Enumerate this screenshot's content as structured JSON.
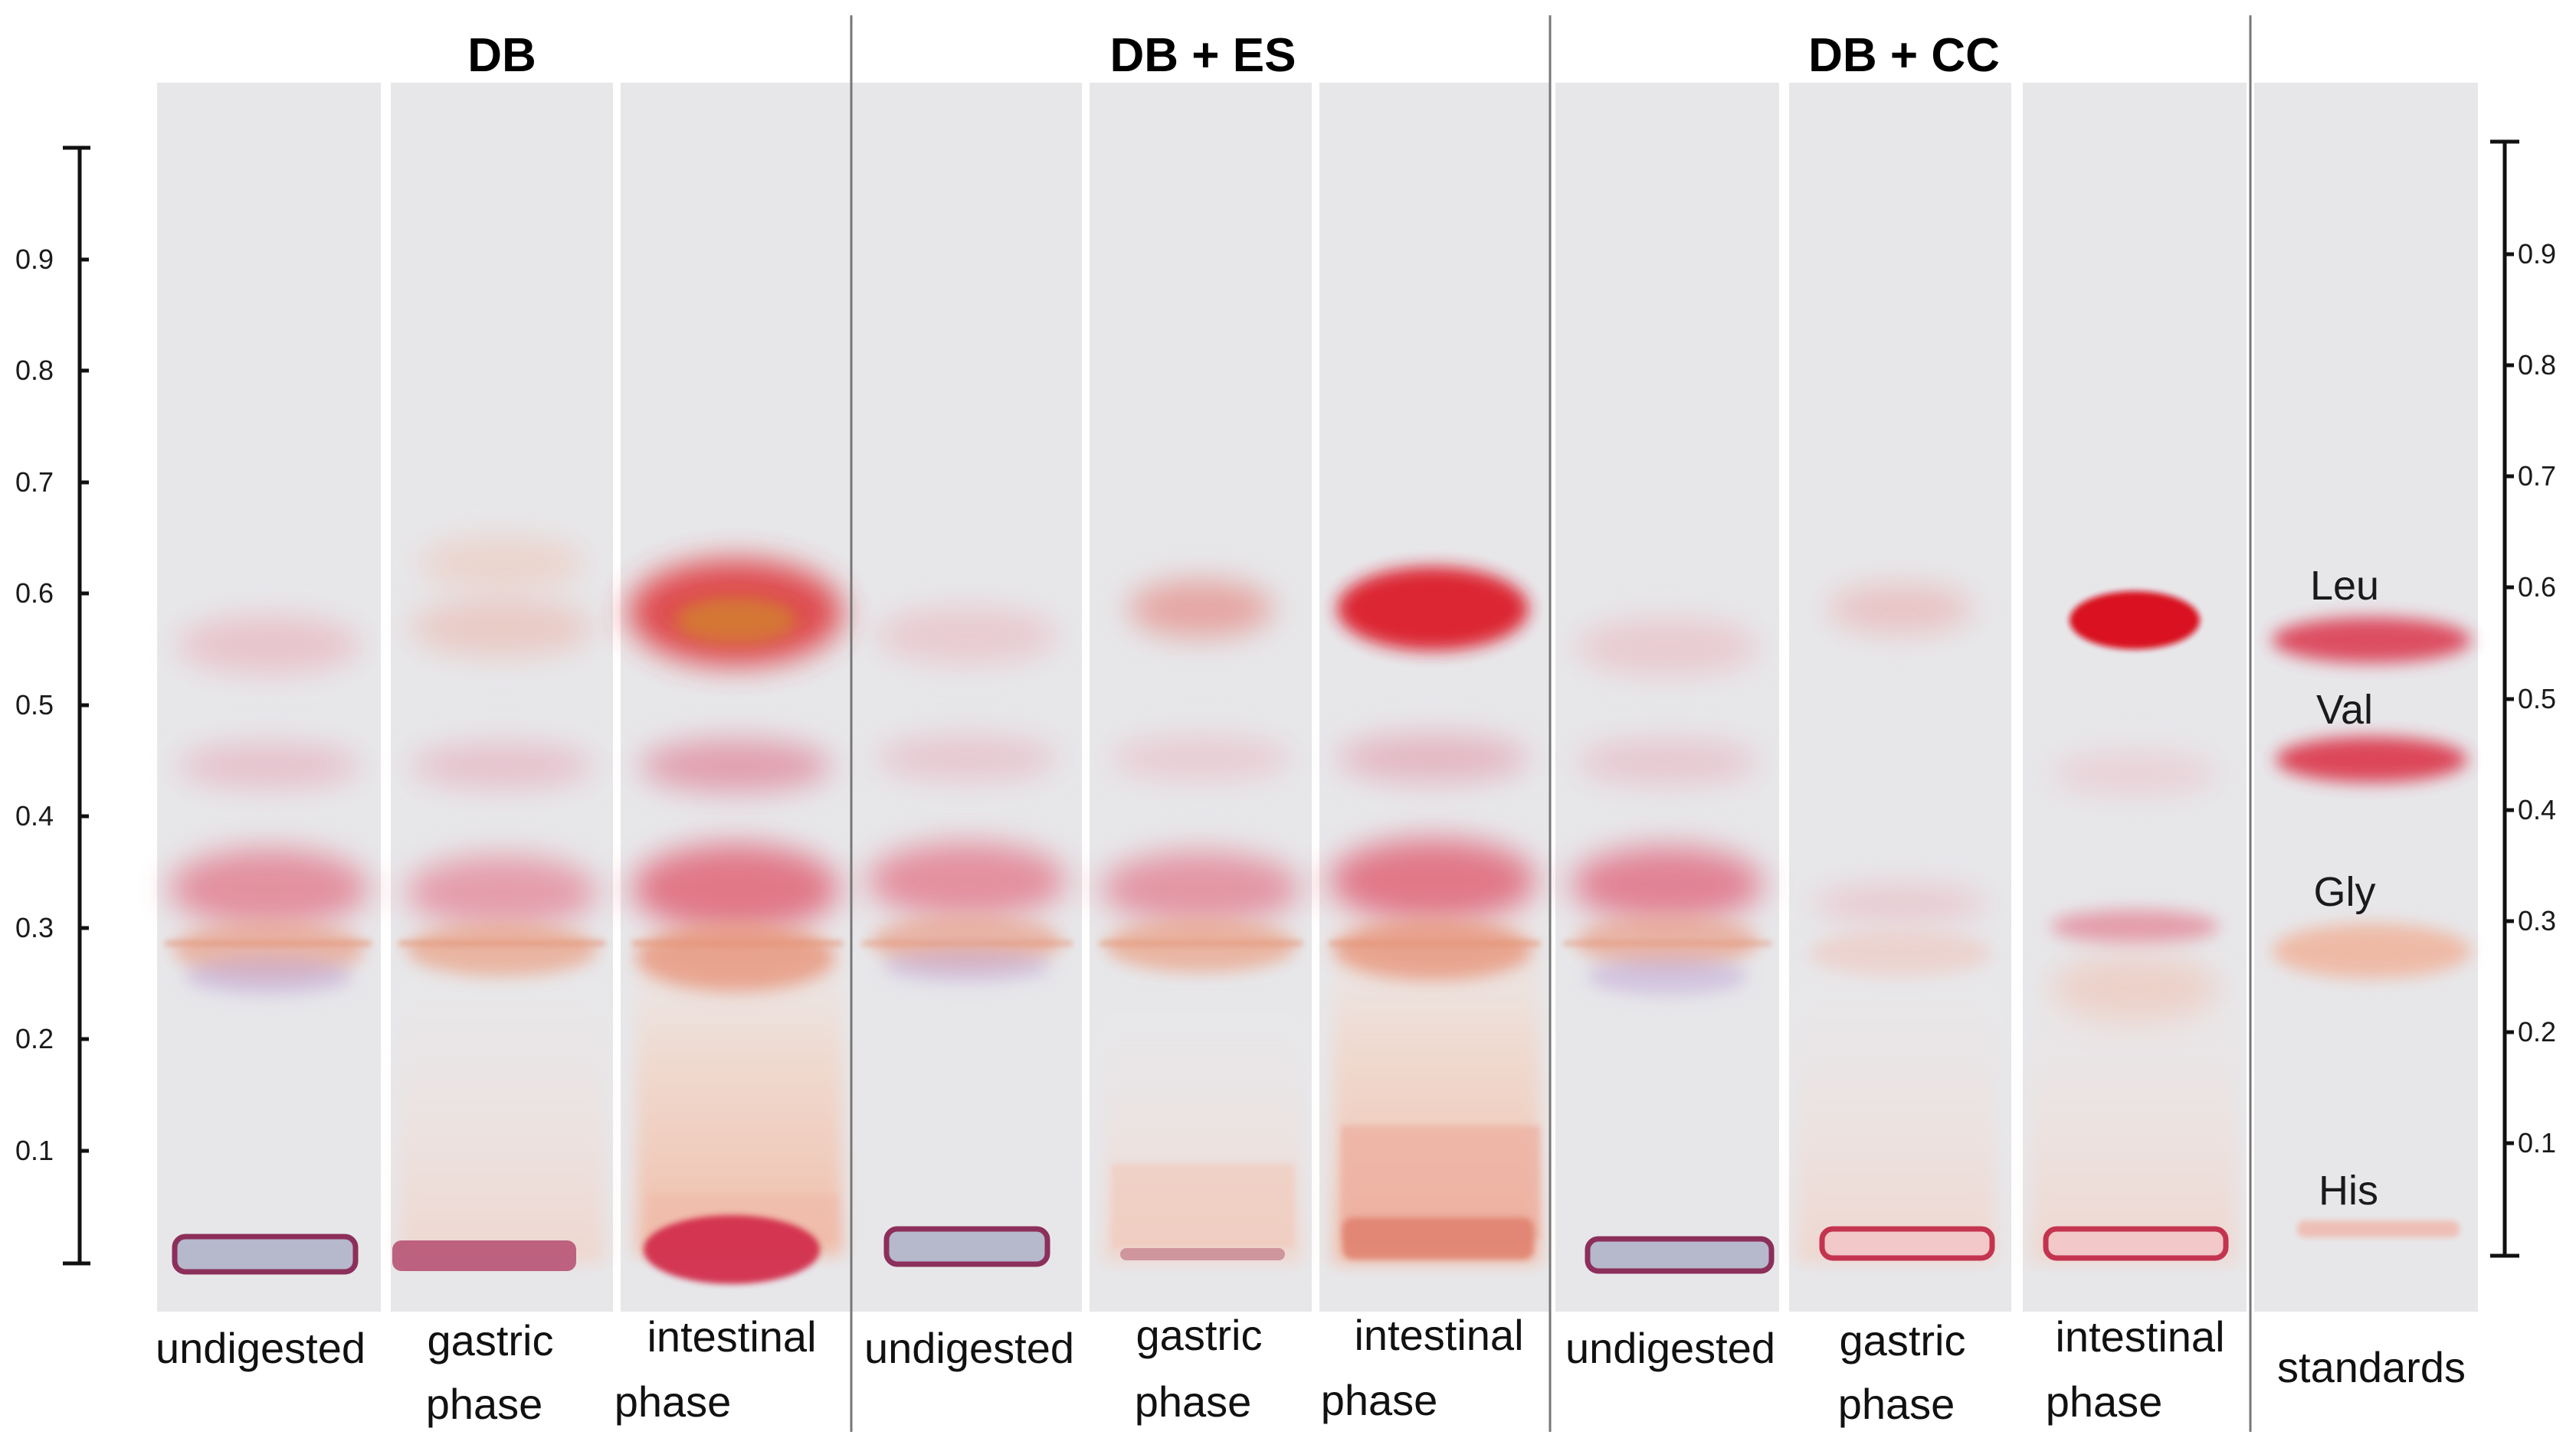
{
  "figure": {
    "groups": [
      {
        "label": "DB"
      },
      {
        "label": "DB + ES"
      },
      {
        "label": "DB + CC"
      }
    ],
    "lanes": [
      {
        "label_line1": "undigested",
        "label_line2": "",
        "group": 0
      },
      {
        "label_line1": "gastric",
        "label_line2": "phase",
        "group": 0
      },
      {
        "label_line1": "intestinal",
        "label_line2": "phase",
        "group": 0
      },
      {
        "label_line1": "undigested",
        "label_line2": "",
        "group": 1
      },
      {
        "label_line1": "gastric",
        "label_line2": "phase",
        "group": 1
      },
      {
        "label_line1": "intestinal",
        "label_line2": "phase",
        "group": 1
      },
      {
        "label_line1": "undigested",
        "label_line2": "",
        "group": 2
      },
      {
        "label_line1": "gastric",
        "label_line2": "phase",
        "group": 2
      },
      {
        "label_line1": "intestinal",
        "label_line2": "phase",
        "group": 2
      },
      {
        "label_line1": "standards",
        "label_line2": "",
        "group": 3
      }
    ],
    "axis_ticks": [
      "0.1",
      "0.2",
      "0.3",
      "0.4",
      "0.5",
      "0.6",
      "0.7",
      "0.8",
      "0.9"
    ],
    "standards": [
      {
        "name": "Leu",
        "rf": 0.55
      },
      {
        "name": "Val",
        "rf": 0.45
      },
      {
        "name": "Gly",
        "rf": 0.28
      },
      {
        "name": "His",
        "rf": 0.03
      }
    ],
    "colors": {
      "plate": "#e7e7ea",
      "band_red": "#d81f2f",
      "band_pink": "#e8808c",
      "band_orange": "#e9a07a",
      "origin_purple": "#6f4c8f"
    }
  }
}
